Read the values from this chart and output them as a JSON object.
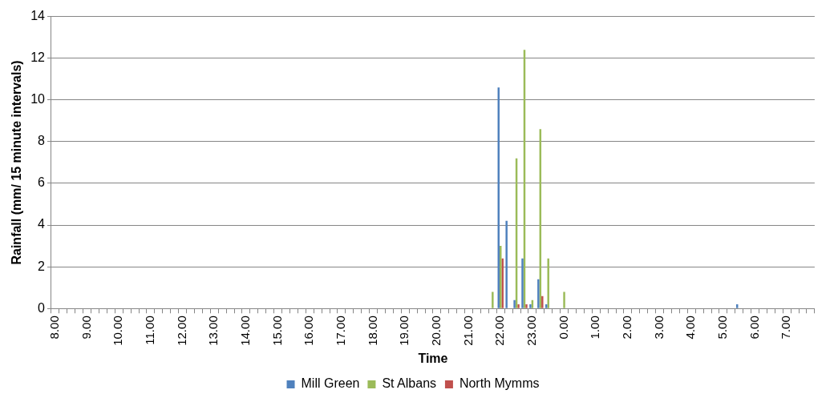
{
  "chart_data": {
    "type": "bar",
    "xlabel": "Time",
    "ylabel": "Rainfall (mm/ 15 minute intervals)",
    "categories": [
      "8.00",
      null,
      null,
      null,
      "9.00",
      null,
      null,
      null,
      "10.00",
      null,
      null,
      null,
      "11.00",
      null,
      null,
      null,
      "12.00",
      null,
      null,
      null,
      "13.00",
      null,
      null,
      null,
      "14.00",
      null,
      null,
      null,
      "15.00",
      null,
      null,
      null,
      "16.00",
      null,
      null,
      null,
      "17.00",
      null,
      null,
      null,
      "18.00",
      null,
      null,
      null,
      "19.00",
      null,
      null,
      null,
      "20.00",
      null,
      null,
      null,
      "21.00",
      null,
      null,
      null,
      "22.00",
      null,
      null,
      null,
      "23.00",
      null,
      null,
      null,
      "0.00",
      null,
      null,
      null,
      "1.00",
      null,
      null,
      null,
      "2.00",
      null,
      null,
      null,
      "3.00",
      null,
      null,
      null,
      "4.00",
      null,
      null,
      null,
      "5.00",
      null,
      null,
      null,
      "6.00",
      null,
      null,
      null,
      "7.00",
      null,
      null,
      null
    ],
    "series": [
      {
        "name": "Mill Green",
        "color": "#4f81bd",
        "values": [
          0,
          0,
          0,
          0,
          0,
          0,
          0,
          0,
          0,
          0,
          0,
          0,
          0,
          0,
          0,
          0,
          0,
          0,
          0,
          0,
          0,
          0,
          0,
          0,
          0,
          0,
          0,
          0,
          0,
          0,
          0,
          0,
          0,
          0,
          0,
          0,
          0,
          0,
          0,
          0,
          0,
          0,
          0,
          0,
          0,
          0,
          0,
          0,
          0,
          0,
          0,
          0,
          0,
          0,
          0,
          0,
          10.6,
          4.2,
          0.4,
          2.4,
          0.2,
          1.4,
          0.2,
          0,
          0,
          0,
          0,
          0,
          0,
          0,
          0,
          0,
          0,
          0,
          0,
          0,
          0,
          0,
          0,
          0,
          0,
          0,
          0,
          0,
          0,
          0,
          0.2,
          0,
          0,
          0,
          0,
          0,
          0,
          0,
          0,
          0
        ]
      },
      {
        "name": "St Albans",
        "color": "#9bbb59",
        "values": [
          0,
          0,
          0,
          0,
          0,
          0,
          0,
          0,
          0,
          0,
          0,
          0,
          0,
          0,
          0,
          0,
          0,
          0,
          0,
          0,
          0,
          0,
          0,
          0,
          0,
          0,
          0,
          0,
          0,
          0,
          0,
          0,
          0,
          0,
          0,
          0,
          0,
          0,
          0,
          0,
          0,
          0,
          0,
          0,
          0,
          0,
          0,
          0,
          0,
          0,
          0,
          0,
          0,
          0,
          0,
          0.8,
          3.0,
          0,
          7.2,
          12.4,
          0.4,
          8.6,
          2.4,
          0,
          0.8,
          0,
          0,
          0,
          0,
          0,
          0,
          0,
          0,
          0,
          0,
          0,
          0,
          0,
          0,
          0,
          0,
          0,
          0,
          0,
          0,
          0,
          0,
          0,
          0,
          0,
          0,
          0,
          0,
          0,
          0,
          0
        ]
      },
      {
        "name": "North Mymms",
        "color": "#c0504d",
        "values": [
          0,
          0,
          0,
          0,
          0,
          0,
          0,
          0,
          0,
          0,
          0,
          0,
          0,
          0,
          0,
          0,
          0,
          0,
          0,
          0,
          0,
          0,
          0,
          0,
          0,
          0,
          0,
          0,
          0,
          0,
          0,
          0,
          0,
          0,
          0,
          0,
          0,
          0,
          0,
          0,
          0,
          0,
          0,
          0,
          0,
          0,
          0,
          0,
          0,
          0,
          0,
          0,
          0,
          0,
          0,
          0,
          2.4,
          0,
          0.2,
          0.2,
          0,
          0.6,
          0,
          0,
          0,
          0,
          0,
          0,
          0,
          0,
          0,
          0,
          0,
          0,
          0,
          0,
          0,
          0,
          0,
          0,
          0,
          0,
          0,
          0,
          0,
          0,
          0,
          0,
          0,
          0,
          0,
          0,
          0,
          0,
          0,
          0
        ]
      }
    ],
    "ylim": [
      0,
      14
    ],
    "yticks": [
      0,
      2,
      4,
      6,
      8,
      10,
      12,
      14
    ],
    "grid": "y",
    "legend": "bottom"
  }
}
